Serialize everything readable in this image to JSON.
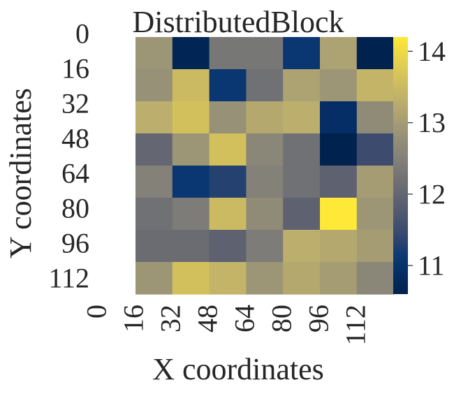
{
  "chart_data": {
    "type": "heatmap",
    "title": "DistributedBlock",
    "xlabel": "X coordinates",
    "ylabel": "Y coordinates",
    "x_ticks": [
      "0",
      "16",
      "32",
      "48",
      "64",
      "80",
      "96",
      "112"
    ],
    "y_ticks": [
      "0",
      "16",
      "32",
      "48",
      "64",
      "80",
      "96",
      "112"
    ],
    "colormap": "cividis",
    "vmin": 10.6,
    "vmax": 14.2,
    "colorbar_ticks": [
      "11",
      "12",
      "13",
      "14"
    ],
    "values": [
      [
        12.9,
        10.7,
        12.3,
        12.3,
        11.1,
        13.1,
        10.6
      ],
      [
        12.8,
        13.5,
        11.1,
        12.2,
        13.1,
        12.9,
        13.4
      ],
      [
        13.3,
        13.6,
        12.8,
        13.2,
        13.3,
        10.9,
        12.7
      ],
      [
        12.0,
        12.9,
        13.6,
        12.6,
        12.2,
        10.6,
        11.5
      ],
      [
        12.5,
        11.1,
        11.3,
        12.5,
        12.2,
        11.9,
        13.0
      ],
      [
        12.2,
        12.4,
        13.5,
        12.7,
        11.9,
        14.2,
        12.9
      ],
      [
        12.1,
        12.1,
        11.9,
        12.4,
        13.3,
        13.2,
        13.0
      ],
      [
        12.9,
        13.6,
        13.4,
        12.9,
        13.2,
        13.0,
        12.6
      ]
    ]
  }
}
